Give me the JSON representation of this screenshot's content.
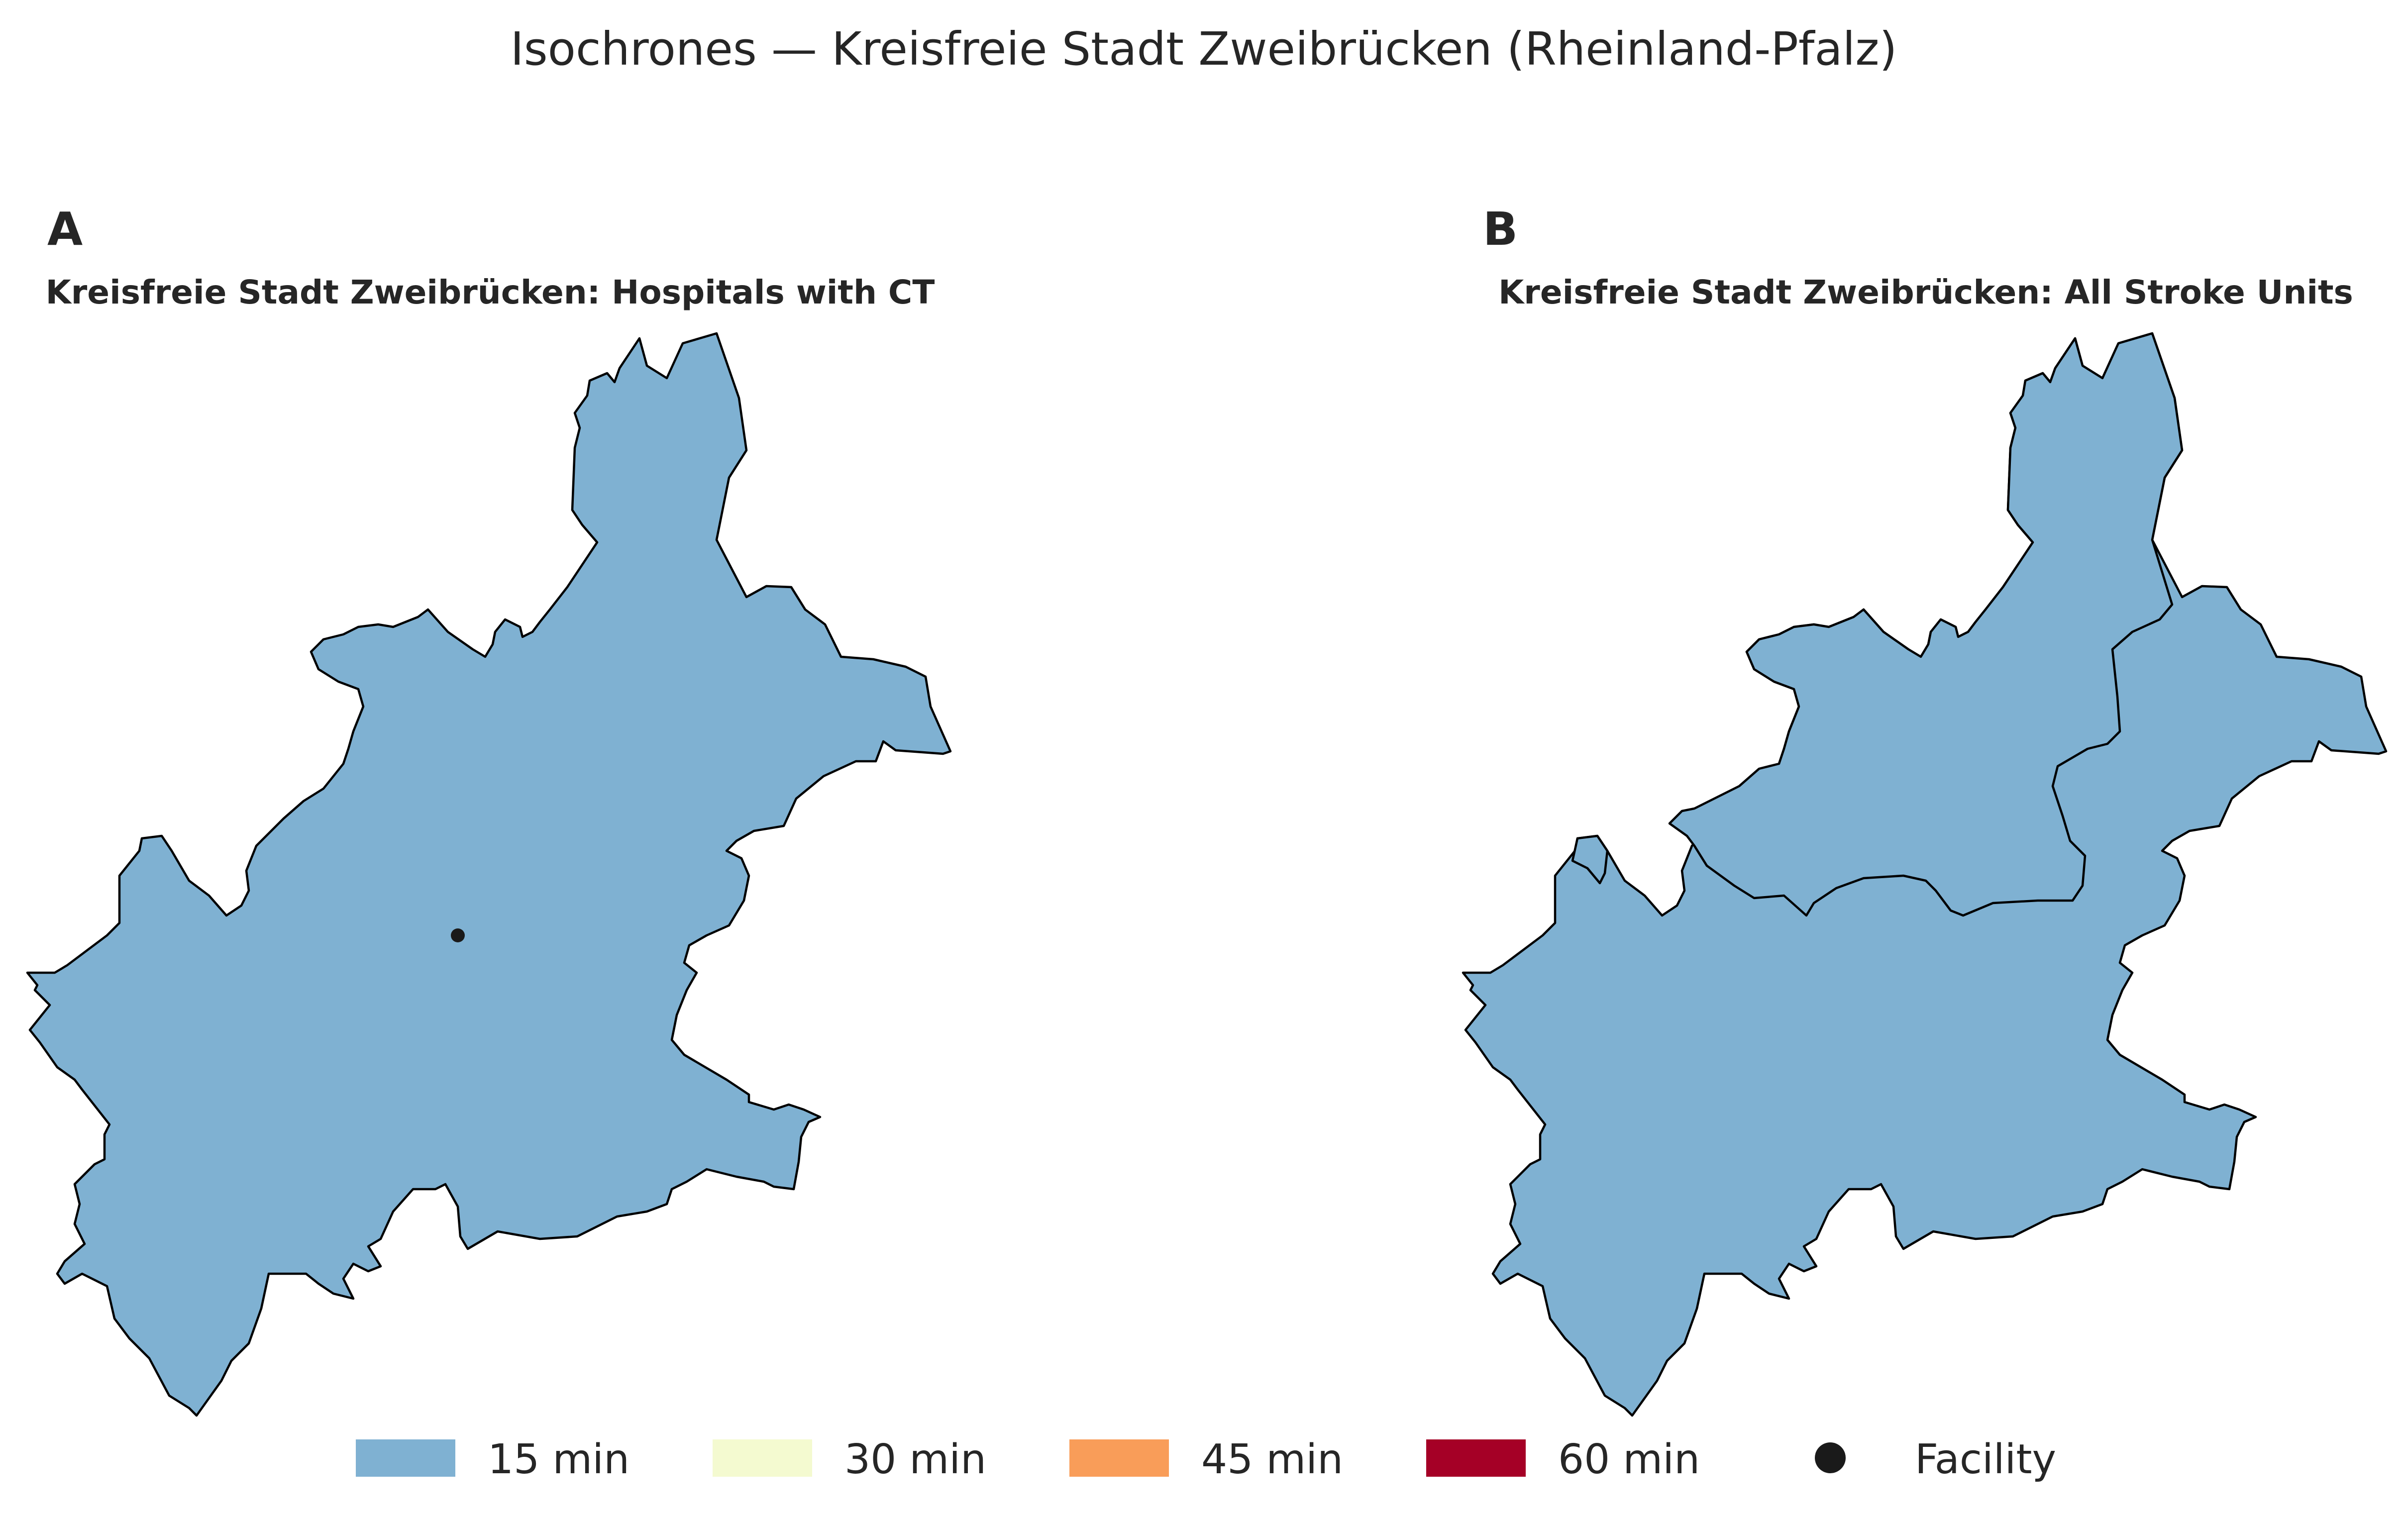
{
  "title": "Isochrones — Kreisfreie Stadt Zweibrücken (Rheinland-Pfalz)",
  "panels": [
    {
      "letter": "A",
      "title": "Kreisfreie Stadt Zweibrücken: Hospitals with CT",
      "zones": [
        {
          "band": "15 min"
        }
      ],
      "facility_shown": true
    },
    {
      "letter": "B",
      "title": "Kreisfreie Stadt Zweibrücken: All Stroke Units",
      "zones": [
        {
          "band": "30 min"
        },
        {
          "band": "15 min"
        }
      ],
      "facility_shown": false
    }
  ],
  "legend": {
    "items": [
      {
        "label": "15 min",
        "color": "#7fb1d2"
      },
      {
        "label": "30 min",
        "color": "#f2efc9"
      },
      {
        "label": "45 min",
        "color": "#f99d59"
      },
      {
        "label": "60 min",
        "color": "#a50026"
      },
      {
        "label": "Facility",
        "color": "#000000",
        "marker": "circle"
      }
    ]
  },
  "colors": {
    "zone_15": "#7fb1d2",
    "zone_30": "#f2efc9",
    "legend_30": "#f4fad0",
    "boundary": "#000000",
    "facility": "#1a1a1a"
  }
}
